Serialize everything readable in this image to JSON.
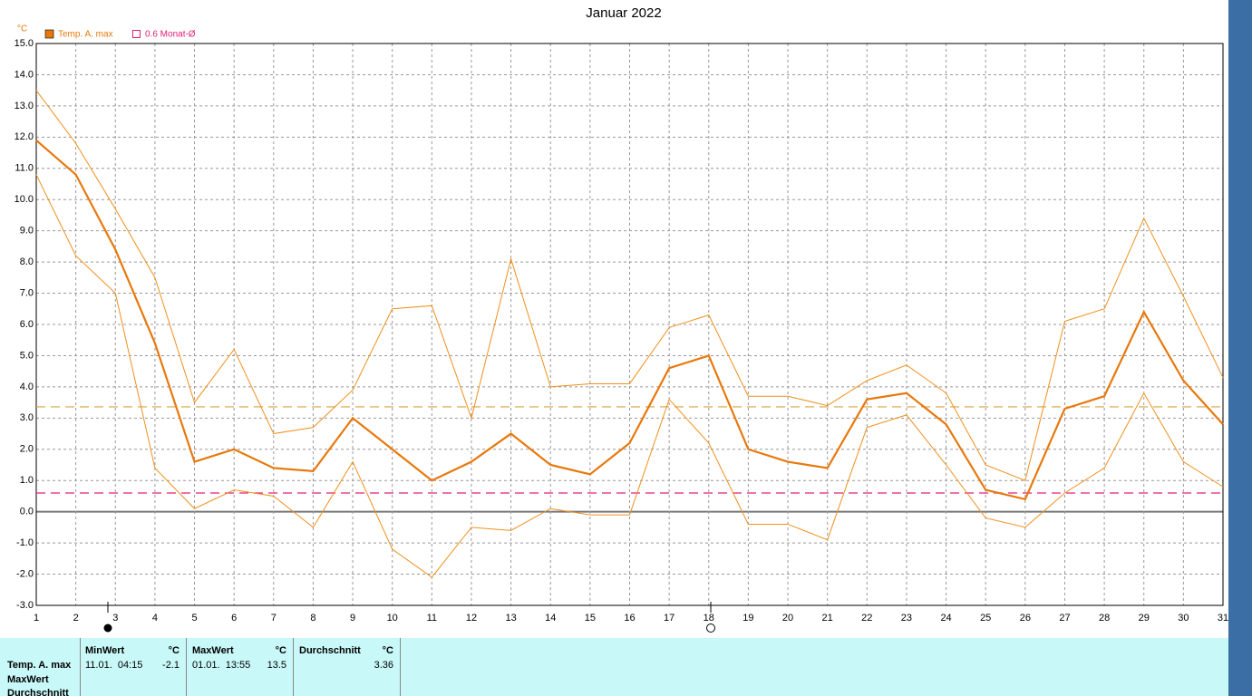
{
  "chart_data": {
    "type": "line",
    "title": "Januar 2022",
    "y_unit": "°C",
    "x": [
      1,
      2,
      3,
      4,
      5,
      6,
      7,
      8,
      9,
      10,
      11,
      12,
      13,
      14,
      15,
      16,
      17,
      18,
      19,
      20,
      21,
      22,
      23,
      24,
      25,
      26,
      27,
      28,
      29,
      30,
      31
    ],
    "series": [
      {
        "name": "Temp. A. max",
        "color": "#e8780c",
        "width": 2.2,
        "values": [
          11.9,
          10.8,
          8.4,
          5.4,
          1.6,
          2.0,
          1.4,
          1.3,
          3.0,
          2.0,
          1.0,
          1.6,
          2.5,
          1.5,
          1.2,
          2.2,
          4.6,
          5.0,
          2.0,
          1.6,
          1.4,
          3.6,
          3.8,
          2.8,
          0.7,
          0.4,
          3.3,
          3.7,
          6.4,
          4.2,
          2.8
        ]
      },
      {
        "color": "#f0901c",
        "width": 1,
        "values": [
          13.5,
          11.8,
          9.7,
          7.5,
          3.5,
          5.2,
          2.5,
          2.7,
          3.9,
          6.5,
          6.6,
          3.0,
          8.1,
          4.0,
          4.1,
          4.1,
          5.9,
          6.3,
          3.7,
          3.7,
          3.4,
          4.2,
          4.7,
          3.8,
          1.5,
          1.0,
          6.1,
          6.5,
          9.4,
          6.9,
          4.3
        ]
      },
      {
        "color": "#f0901c",
        "width": 1,
        "values": [
          10.8,
          8.2,
          7.0,
          1.4,
          0.1,
          0.7,
          0.5,
          -0.5,
          1.6,
          -1.2,
          -2.1,
          -0.5,
          -0.6,
          0.1,
          -0.1,
          -0.1,
          3.6,
          2.2,
          -0.4,
          -0.4,
          -0.9,
          2.7,
          3.1,
          1.5,
          -0.2,
          -0.5,
          0.6,
          1.4,
          3.8,
          1.6,
          0.8
        ]
      }
    ],
    "reference_lines": [
      {
        "value": 3.36,
        "color": "#d9a040"
      },
      {
        "value": 0.6,
        "label": "0.6 Monat-Ø",
        "color": "#e0207a"
      }
    ],
    "xlim": [
      1,
      31
    ],
    "xticks": [
      1,
      2,
      3,
      4,
      5,
      6,
      7,
      8,
      9,
      10,
      11,
      12,
      13,
      14,
      15,
      16,
      17,
      18,
      19,
      20,
      21,
      22,
      23,
      24,
      25,
      26,
      27,
      28,
      29,
      30,
      31
    ],
    "ylim": [
      -3,
      15
    ],
    "yticks": [
      {
        "value": -3,
        "label": "-3.0"
      },
      {
        "value": -2,
        "label": "-2.0"
      },
      {
        "value": -1,
        "label": "-1.0"
      },
      {
        "value": 0,
        "label": "0.0"
      },
      {
        "value": 1,
        "label": "1.0"
      },
      {
        "value": 2,
        "label": "2.0"
      },
      {
        "value": 3,
        "label": "3.0"
      },
      {
        "value": 4,
        "label": "4.0"
      },
      {
        "value": 5,
        "label": "5.0"
      },
      {
        "value": 6,
        "label": "6.0"
      },
      {
        "value": 7,
        "label": "7.0"
      },
      {
        "value": 8,
        "label": "8.0"
      },
      {
        "value": 9,
        "label": "9.0"
      },
      {
        "value": 10,
        "label": "10.0"
      },
      {
        "value": 11,
        "label": "11.0"
      },
      {
        "value": 12,
        "label": "12.0"
      },
      {
        "value": 13,
        "label": "13.0"
      },
      {
        "value": 14,
        "label": "14.0"
      },
      {
        "value": 15,
        "label": "15.0"
      }
    ],
    "grid": true
  },
  "table": {
    "row_labels": [
      "Temp. A. max",
      "MaxWert",
      "Durchschnitt"
    ],
    "columns": [
      {
        "header": "MinWert",
        "unit": "°C",
        "time": "11.01.  04:15",
        "value": -2.1
      },
      {
        "header": "MaxWert",
        "unit": "°C",
        "time": "01.01.  13:55",
        "value": 13.5
      },
      {
        "header": "Durchschnitt",
        "unit": "°C",
        "value": 3.36
      }
    ]
  }
}
